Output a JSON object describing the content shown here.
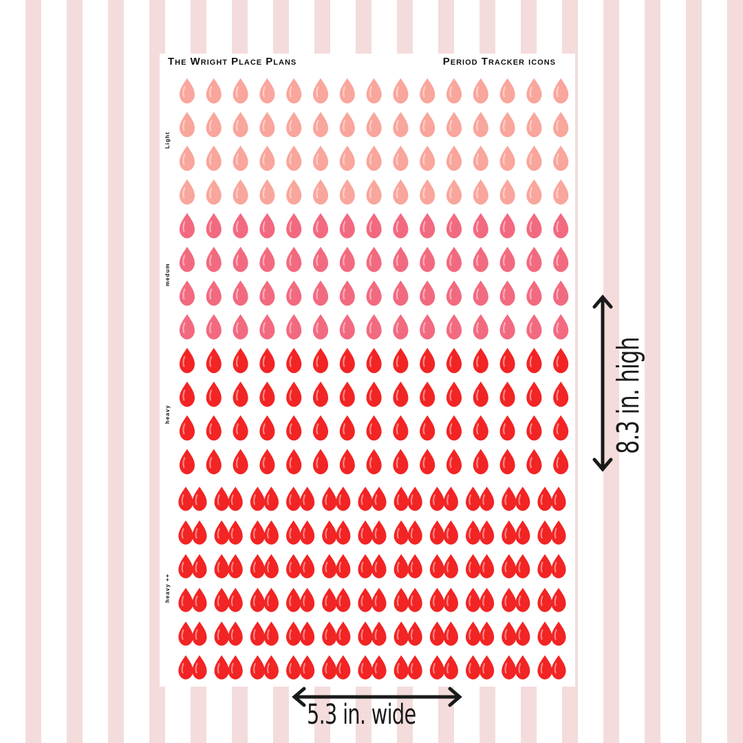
{
  "sheet": {
    "brand": "The Wright Place Plans",
    "title": "Period Tracker icons"
  },
  "sections": [
    {
      "label": "Light",
      "rows": 4,
      "color": "#f9a69c",
      "pair": false
    },
    {
      "label": "medum",
      "rows": 4,
      "color": "#f26a80",
      "pair": false
    },
    {
      "label": "heavy",
      "rows": 4,
      "color": "#f22424",
      "pair": false
    },
    {
      "label": "heavy ++",
      "rows": 6,
      "color": "#f22424",
      "pair": true
    }
  ],
  "icons": {
    "drop": "blood-drop-icon",
    "arrow": "double-arrow-icon"
  },
  "dimensions": {
    "width_label": "5.3 in. wide",
    "height_label": "8.3 in. high"
  }
}
